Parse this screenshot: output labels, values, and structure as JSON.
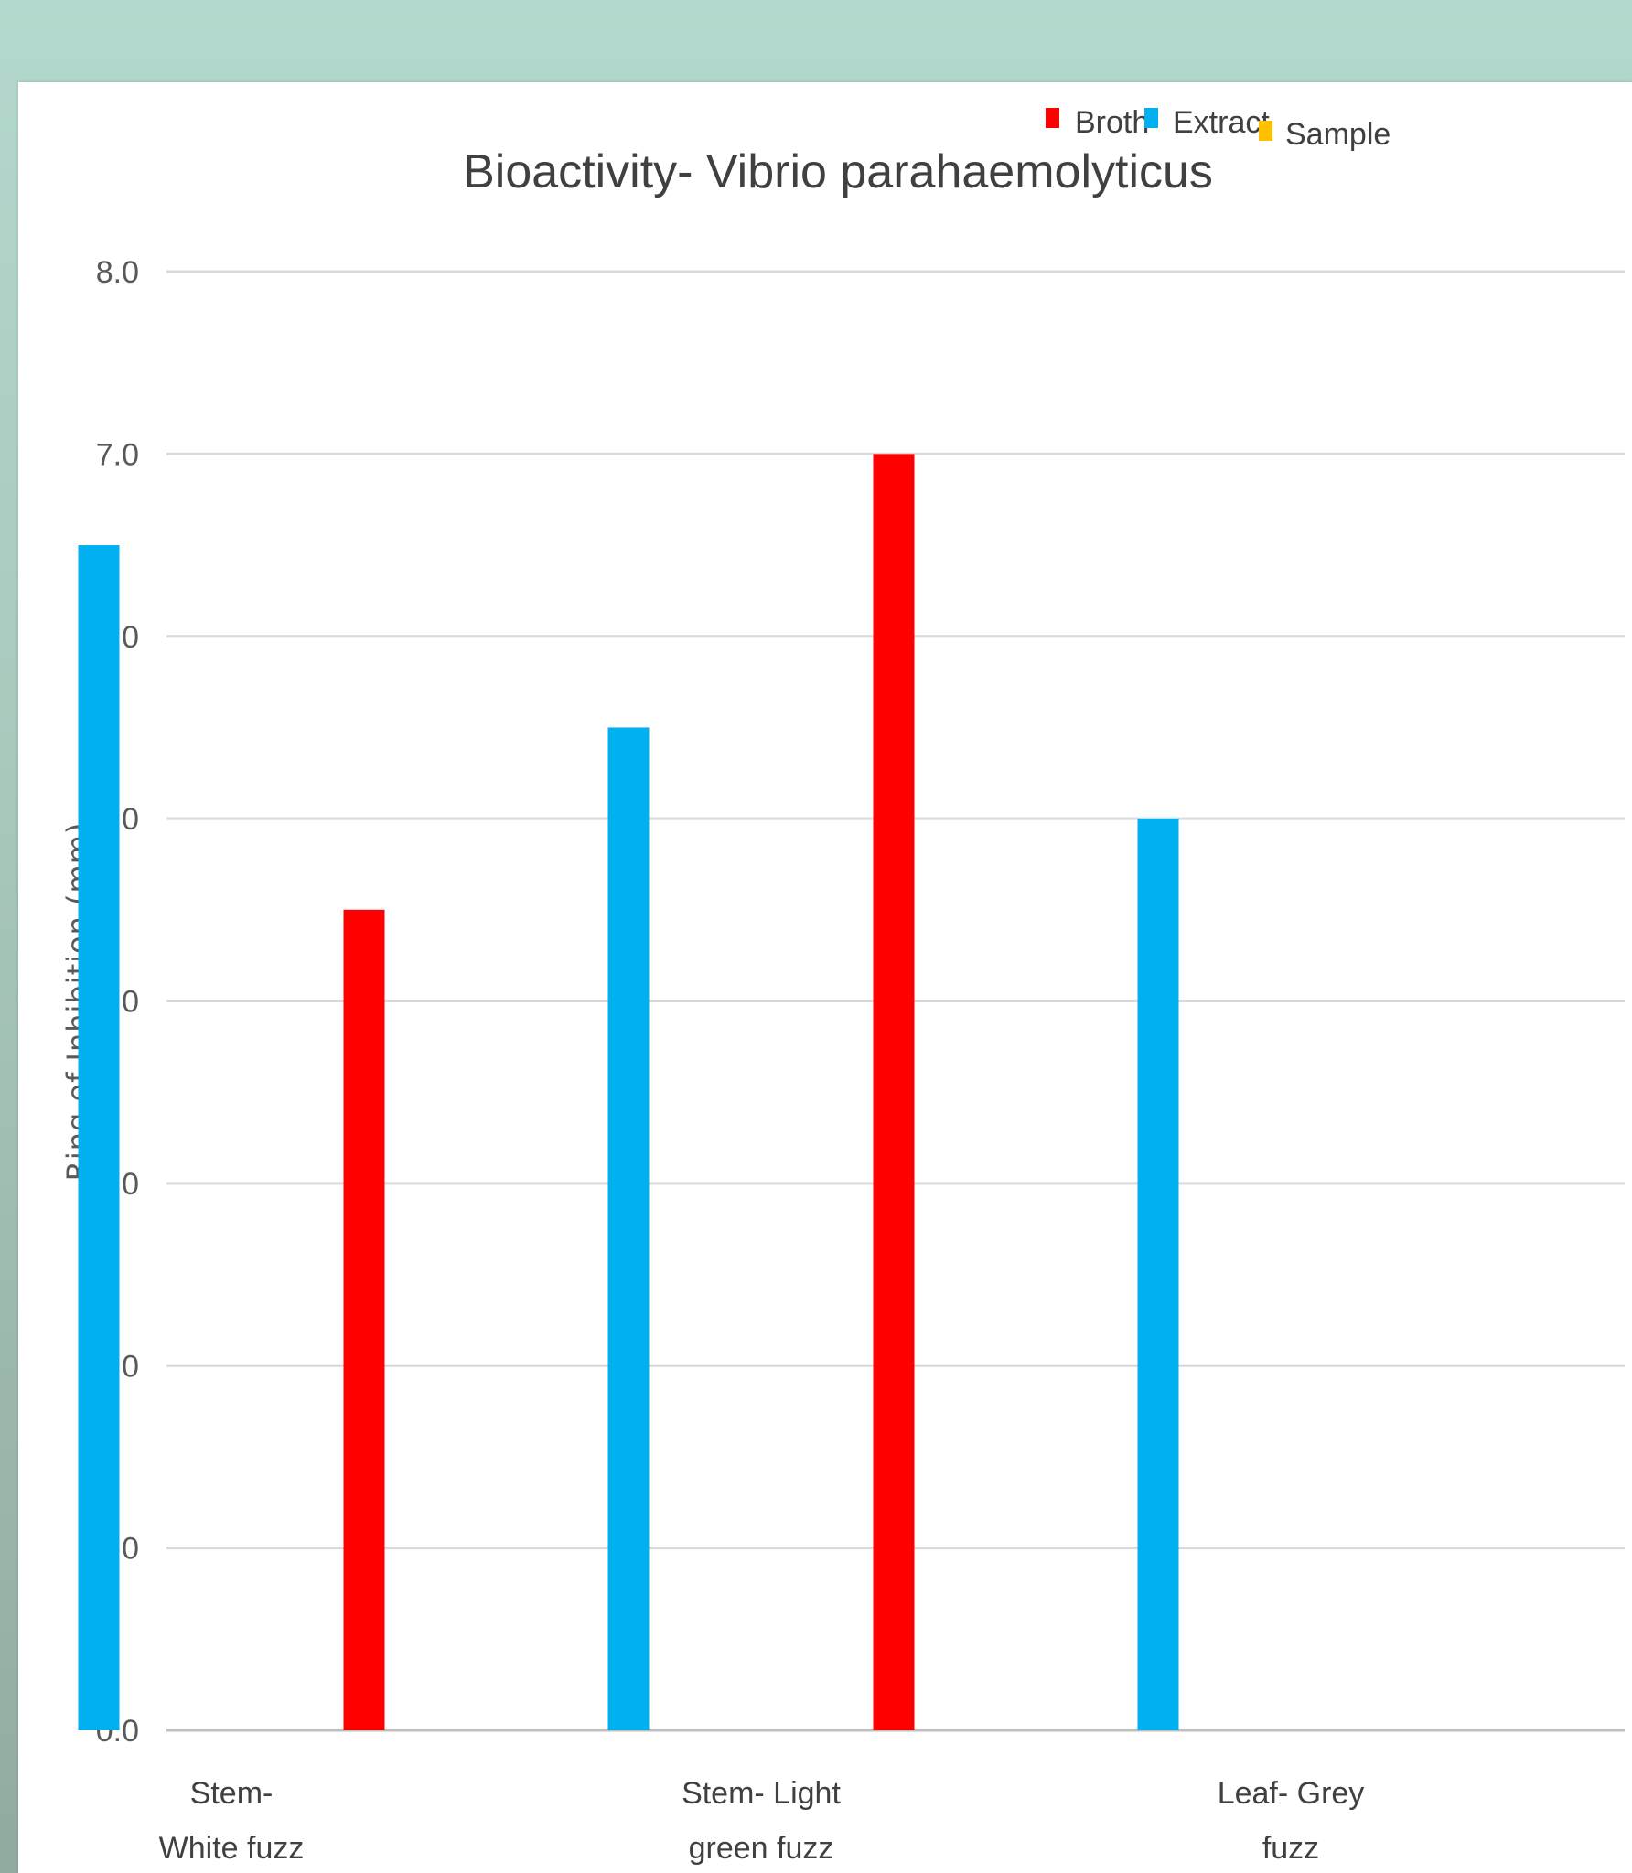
{
  "chart_data": {
    "type": "bar",
    "title": "Bioactivity- Vibrio parahaemolyticus",
    "xlabel": "",
    "ylabel": "Ring of Inhibition (mm)",
    "ylim": [
      0,
      8
    ],
    "yticks": [
      "0.0",
      "1.0",
      "2.0",
      "3.0",
      "4.0",
      "5.0",
      "6.0",
      "7.0",
      "8.0"
    ],
    "grid": true,
    "legend_position": "top",
    "categories": [
      [
        "Stem-",
        "White fuzz"
      ],
      [
        "Stem- Light",
        "green fuzz"
      ],
      [
        "Leaf- Grey",
        "fuzz"
      ]
    ],
    "series_order_in_group": [
      "Extract",
      "Sample",
      "Broth"
    ],
    "series": [
      {
        "name": "Broth",
        "color": "#ff0000",
        "values": [
          4.5,
          7.0,
          0
        ]
      },
      {
        "name": "Extract",
        "color": "#00b0f0",
        "values": [
          6.5,
          5.5,
          5.0
        ]
      },
      {
        "name": "Sample",
        "color": "#ffc000",
        "values": [
          0,
          0,
          0
        ]
      }
    ]
  }
}
